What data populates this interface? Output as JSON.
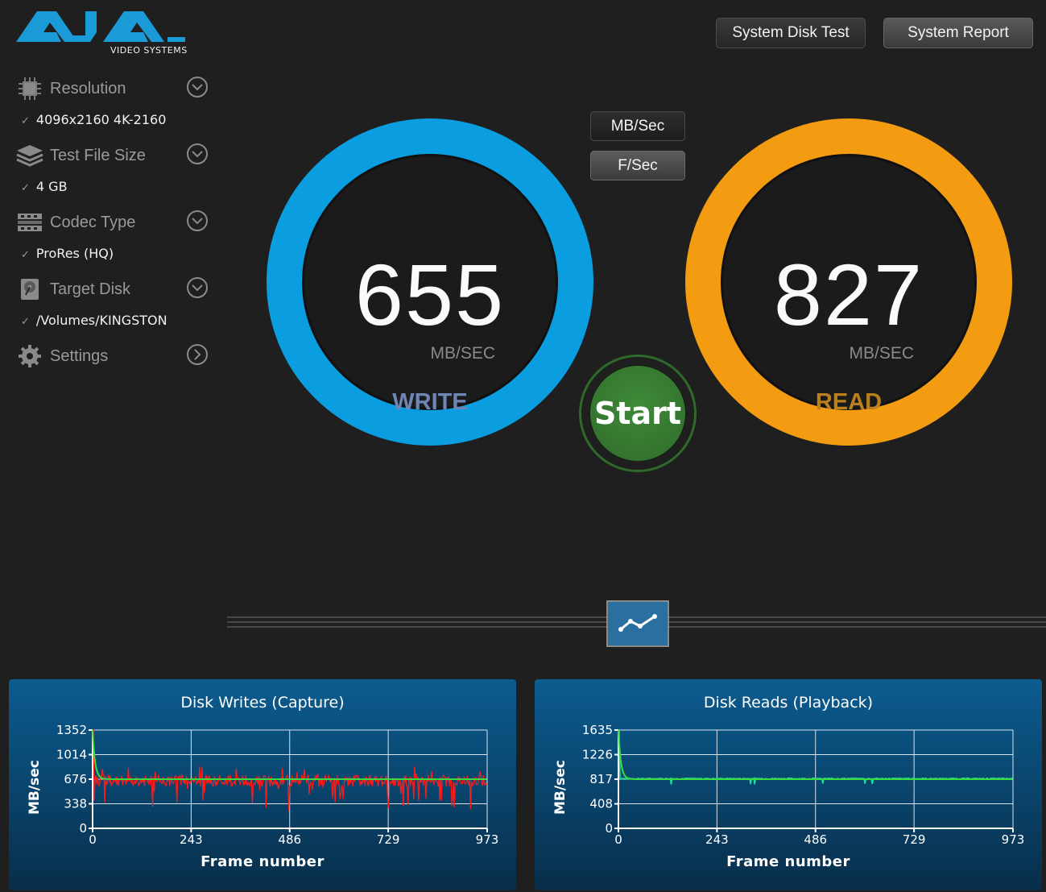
{
  "logo": {
    "brand": "AJA",
    "sub": "VIDEO SYSTEMS"
  },
  "header": {
    "system_disk_test": "System Disk Test",
    "system_report": "System Report"
  },
  "units": {
    "mb_sec": "MB/Sec",
    "f_sec": "F/Sec"
  },
  "sidebar": {
    "resolution": {
      "label": "Resolution",
      "value": "4096x2160 4K-2160"
    },
    "test_file_size": {
      "label": "Test File Size",
      "value": "4 GB"
    },
    "codec_type": {
      "label": "Codec Type",
      "value": "ProRes (HQ)"
    },
    "target_disk": {
      "label": "Target Disk",
      "value": "/Volumes/KINGSTON"
    },
    "settings": {
      "label": "Settings"
    },
    "check": "✓"
  },
  "write": {
    "value": "655",
    "unit": "MB/SEC",
    "label": "WRITE",
    "color": "#0a9ee0",
    "label_color": "#6f86b5"
  },
  "read": {
    "value": "827",
    "unit": "MB/SEC",
    "label": "READ",
    "color": "#f39c12",
    "label_color": "#b8801e"
  },
  "start": {
    "label": "Start"
  },
  "colors": {
    "write_series": "#ff1a1a",
    "read_series": "#1fe0a0",
    "avg_line": "#3ddc3d"
  },
  "chart_data": [
    {
      "type": "line",
      "title": "Disk Writes (Capture)",
      "xlabel": "Frame number",
      "ylabel": "MB/sec",
      "xlim": [
        0,
        973
      ],
      "ylim": [
        0,
        1352
      ],
      "x_ticks": [
        "0",
        "243",
        "486",
        "729",
        "973"
      ],
      "y_ticks": [
        "0",
        "338",
        "676",
        "1014",
        "1352"
      ],
      "series": [
        {
          "values_approx_mean": 655,
          "x_range": [
            0,
            973
          ]
        }
      ],
      "average_start": 1352,
      "average_settle": 676
    },
    {
      "type": "line",
      "title": "Disk Reads (Playback)",
      "xlabel": "Frame number",
      "ylabel": "MB/sec",
      "xlim": [
        0,
        973
      ],
      "ylim": [
        0,
        1635
      ],
      "x_ticks": [
        "0",
        "243",
        "486",
        "729",
        "973"
      ],
      "y_ticks": [
        "0",
        "408",
        "817",
        "1226",
        "1635"
      ],
      "series": [
        {
          "values_approx_mean": 827,
          "x_range": [
            0,
            973
          ]
        }
      ],
      "average_start": 1635,
      "average_settle": 817
    }
  ]
}
